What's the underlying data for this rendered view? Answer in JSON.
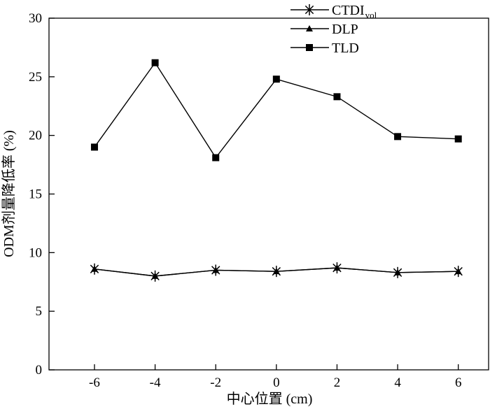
{
  "chart_data": {
    "type": "line",
    "xlabel": "中心位置 (cm)",
    "ylabel": "ODM剂量降低率 (%)",
    "xlim": [
      -7.5,
      7
    ],
    "ylim": [
      0,
      30
    ],
    "xticks": [
      -6,
      -4,
      -2,
      0,
      2,
      4,
      6
    ],
    "yticks": [
      0,
      5,
      10,
      15,
      20,
      25,
      30
    ],
    "grid": false,
    "legend_position": "top-right",
    "x": [
      -6,
      -4,
      -2,
      0,
      2,
      4,
      6
    ],
    "series": [
      {
        "name": "CTDI",
        "name_subscript": "vol",
        "marker": "asterisk",
        "values": [
          8.6,
          8.0,
          8.5,
          8.4,
          8.7,
          8.3,
          8.4
        ]
      },
      {
        "name": "DLP",
        "marker": "triangle",
        "values": [
          8.6,
          8.0,
          8.5,
          8.4,
          8.7,
          8.3,
          8.4
        ]
      },
      {
        "name": "TLD",
        "marker": "square",
        "values": [
          19.0,
          26.2,
          18.1,
          24.8,
          23.3,
          19.9,
          19.7
        ]
      }
    ]
  }
}
